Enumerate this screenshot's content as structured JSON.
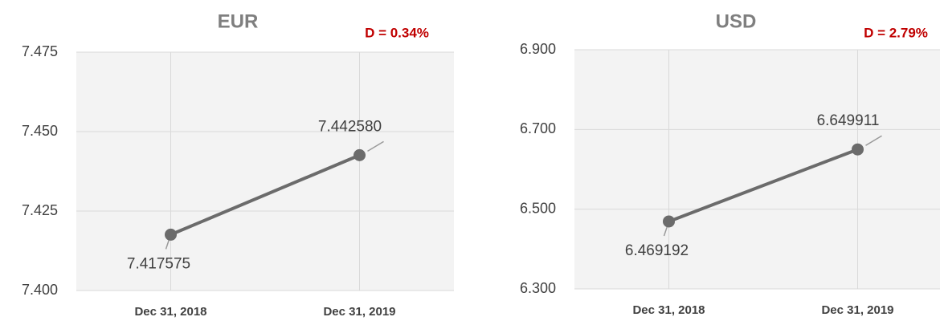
{
  "chart_data": [
    {
      "type": "line",
      "title": "EUR",
      "annotation": "D = 0.34%",
      "categories": [
        "Dec 31, 2018",
        "Dec 31, 2019"
      ],
      "series": [
        {
          "color": "#6b6b6b",
          "values": [
            7.417575,
            7.44258
          ],
          "value_labels": [
            "7.417575",
            "7.442580"
          ]
        }
      ],
      "ylim": [
        7.4,
        7.475
      ],
      "yticks": [
        {
          "value": 7.4,
          "label": "7.400"
        },
        7.425,
        {
          "value": 7.45,
          "label": "7.450"
        },
        7.475
      ],
      "grid": true
    },
    {
      "type": "line",
      "title": "USD",
      "annotation": "D = 2.79%",
      "categories": [
        "Dec 31, 2018",
        "Dec 31, 2019"
      ],
      "series": [
        {
          "color": "#6b6b6b",
          "values": [
            6.469192,
            6.649911
          ],
          "value_labels": [
            "6.469192",
            "6.649911"
          ]
        }
      ],
      "ylim": [
        6.3,
        6.9
      ],
      "yticks": [
        {
          "value": 6.3,
          "label": "6.300"
        },
        {
          "value": 6.5,
          "label": "6.500"
        },
        {
          "value": 6.7,
          "label": "6.700"
        },
        {
          "value": 6.9,
          "label": "6.900"
        }
      ],
      "grid": true
    }
  ]
}
